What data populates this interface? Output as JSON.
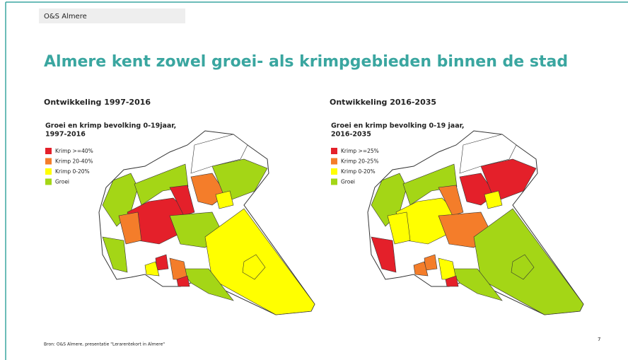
{
  "header": {
    "label": "O&S Almere"
  },
  "title": "Almere kent zowel groei- als krimpgebieden binnen de stad",
  "panels": [
    {
      "heading": "Ontwikkeling 1997-2016",
      "map_title": [
        "Groei en krimp bevolking 0-19jaar,",
        "1997-2016"
      ],
      "legend": [
        {
          "label": "Krimp >=40%",
          "color": "#e4202a"
        },
        {
          "label": "Krimp 20-40%",
          "color": "#f47d2a"
        },
        {
          "label": "Krimp 0-20%",
          "color": "#ffff00"
        },
        {
          "label": "Groei",
          "color": "#a4d616"
        }
      ]
    },
    {
      "heading": "Ontwikkeling 2016-2035",
      "map_title": [
        "Groei en krimp bevolking 0-19 jaar,",
        "2016-2035"
      ],
      "legend": [
        {
          "label": "Krimp >=25%",
          "color": "#e4202a"
        },
        {
          "label": "Krimp 20-25%",
          "color": "#f47d2a"
        },
        {
          "label": "Krimp 0-20%",
          "color": "#ffff00"
        },
        {
          "label": "Groei",
          "color": "#a4d616"
        }
      ]
    }
  ],
  "source": "Bron: O&S Almere, presentatie \"Lerarentekort in Almere\"",
  "page_number": "7"
}
